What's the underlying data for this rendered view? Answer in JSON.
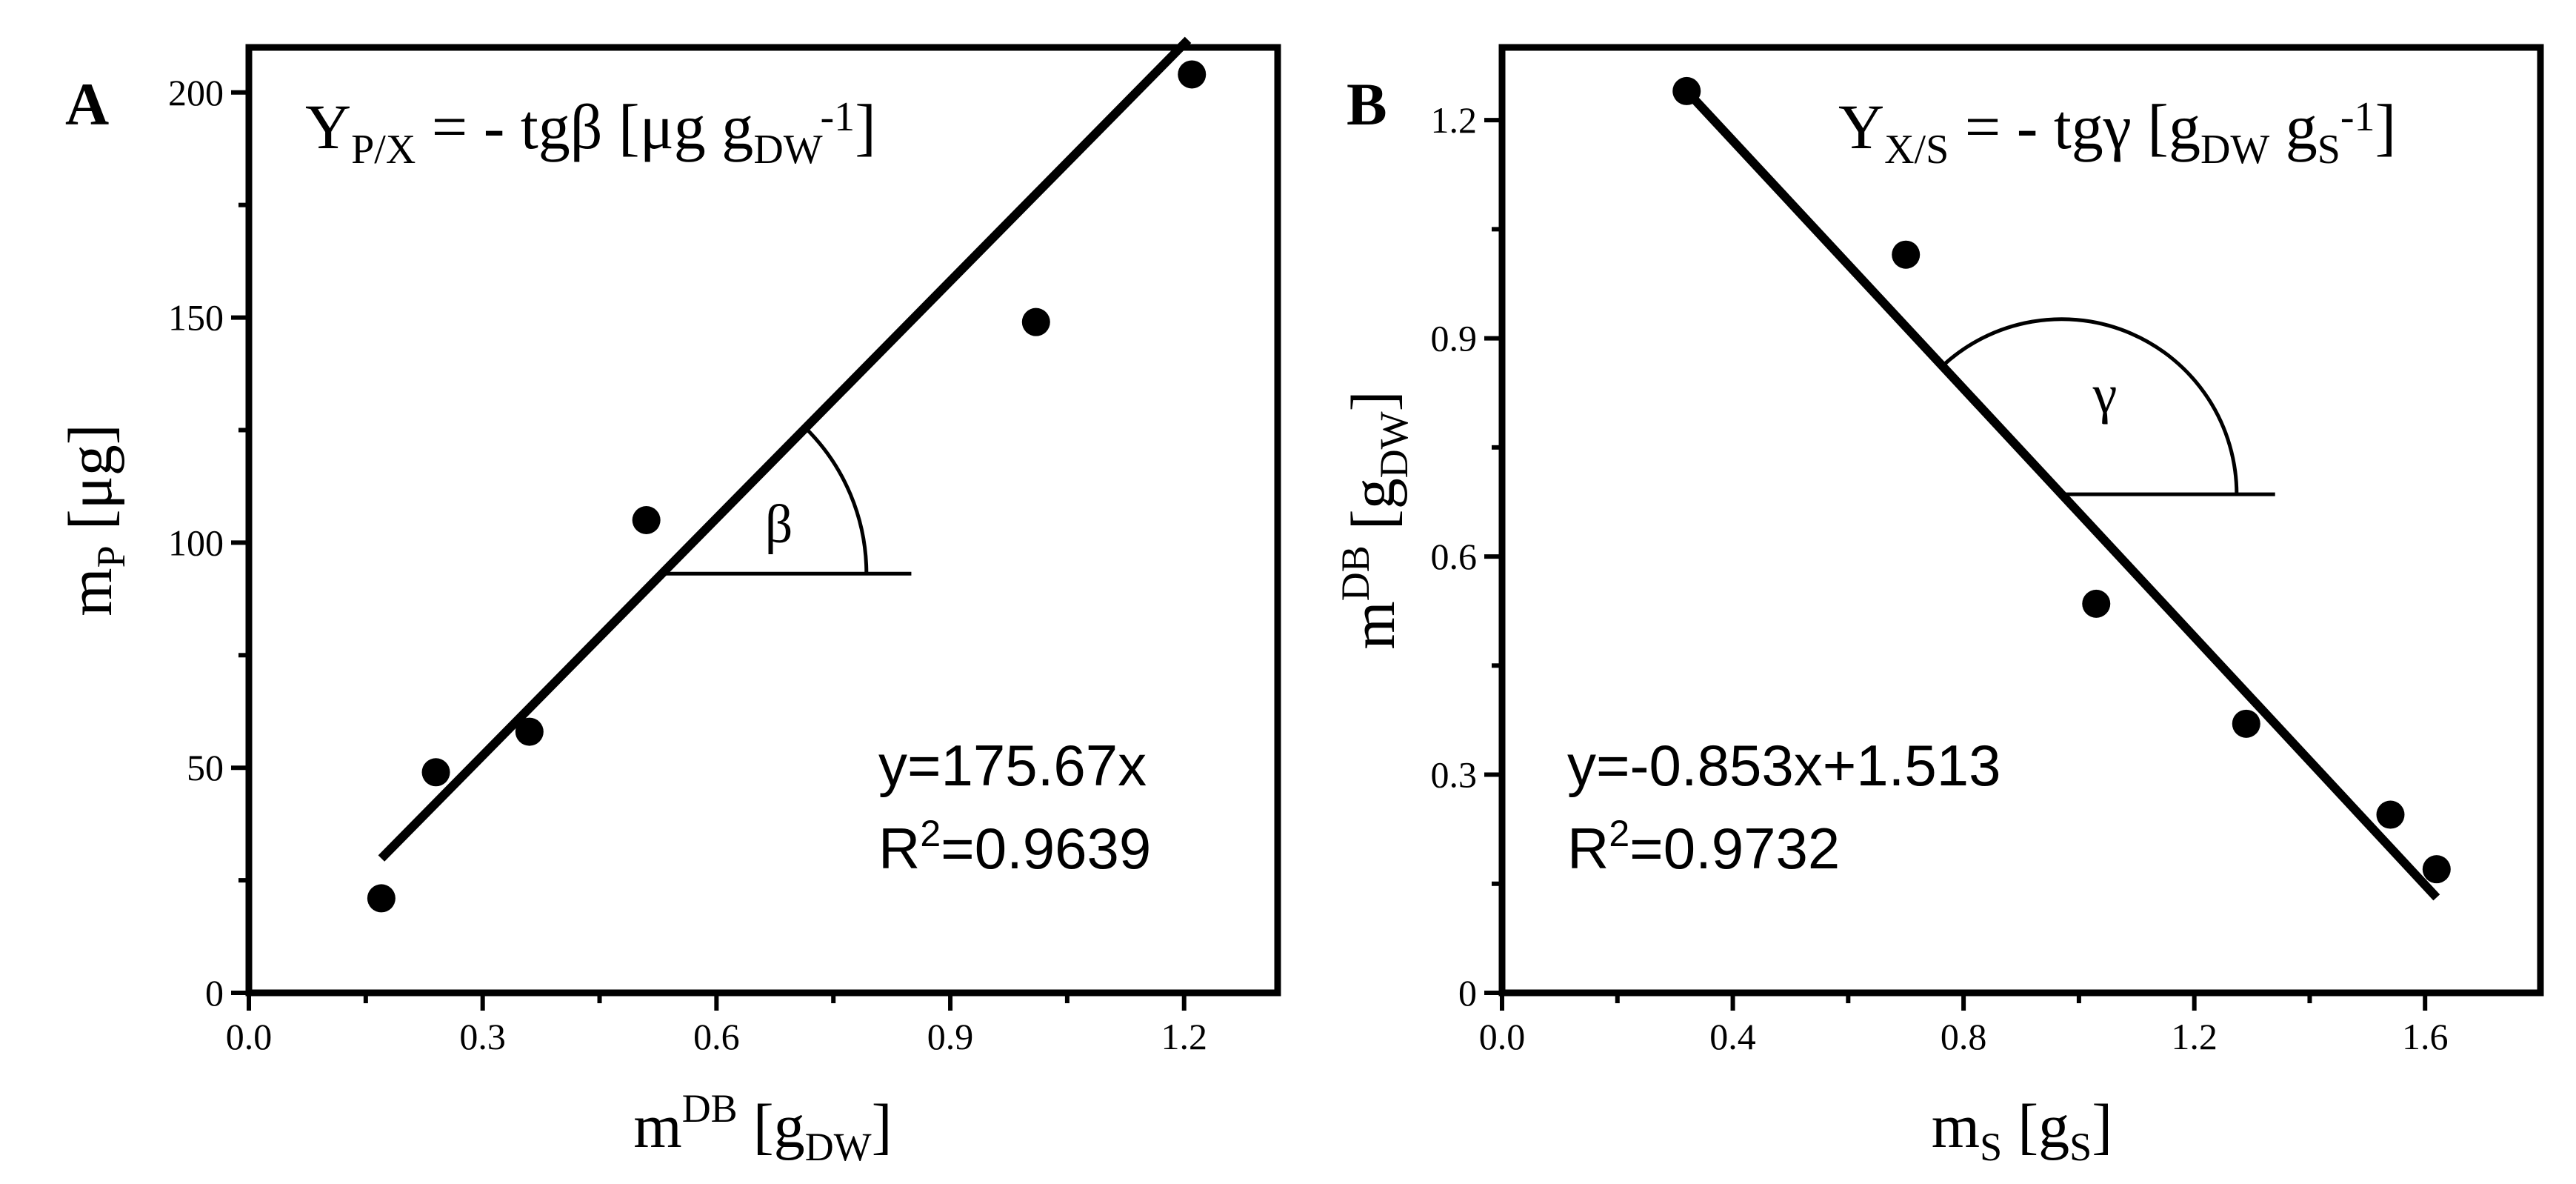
{
  "chart_data": [
    {
      "type": "scatter",
      "panel": "A",
      "formula": {
        "main": "Y",
        "sub": "P/X",
        "rest": " = - tgβ [μg g",
        "unit_sub": "DW",
        "unit_sup": "-1",
        "close": "]"
      },
      "xlabel": {
        "main": "m",
        "sup": "DB",
        "open": " [g",
        "sub": "DW",
        "close": "]"
      },
      "ylabel": {
        "main": "m",
        "sub": "P",
        "rest": " [μg]"
      },
      "xlim": [
        0,
        1.32
      ],
      "ylim": [
        0,
        210
      ],
      "x_ticks": [
        0.0,
        0.3,
        0.6,
        0.9,
        1.2
      ],
      "x_tick_labels": [
        "0.0",
        "0.3",
        "0.6",
        "0.9",
        "1.2"
      ],
      "x_minor_ticks": [
        0.15,
        0.45,
        0.75,
        1.05
      ],
      "y_ticks": [
        0,
        50,
        100,
        150,
        200
      ],
      "y_tick_labels": [
        "0",
        "50",
        "100",
        "150",
        "200"
      ],
      "y_minor_ticks": [
        25,
        75,
        125,
        175
      ],
      "points": {
        "x": [
          0.17,
          0.24,
          0.36,
          0.51,
          1.01,
          1.21
        ],
        "y": [
          21,
          49,
          58,
          105,
          149,
          204
        ]
      },
      "fit": {
        "slope": 175.67,
        "intercept": 0,
        "x_range": [
          0.17,
          1.205
        ]
      },
      "equation": "y=175.67x",
      "r2": {
        "main": "R",
        "sup": "2",
        "rest": "=0.9639"
      },
      "angle": {
        "label": "β",
        "vertex_x": 0.53,
        "end_x": 0.85
      }
    },
    {
      "type": "scatter",
      "panel": "B",
      "formula": {
        "main": "Y",
        "sub": "X/S",
        "rest": " = - tgγ [g",
        "unit_sub": "DW",
        "mid": " g",
        "unit_sub2": "S",
        "unit_sup": "-1",
        "close": "]"
      },
      "xlabel": {
        "main": "m",
        "sub": "S",
        "open": " [g",
        "sub2": "S",
        "close": "]"
      },
      "ylabel": {
        "main": "m",
        "sup": "DB",
        "open": " [g",
        "sub": "DW",
        "close": "]"
      },
      "xlim": [
        0,
        1.8
      ],
      "ylim": [
        0,
        1.3
      ],
      "x_ticks": [
        0.0,
        0.4,
        0.8,
        1.2,
        1.6
      ],
      "x_tick_labels": [
        "0.0",
        "0.4",
        "0.8",
        "1.2",
        "1.6"
      ],
      "x_minor_ticks": [
        0.2,
        0.6,
        1.0,
        1.4
      ],
      "y_ticks": [
        0,
        0.3,
        0.6,
        0.9,
        1.2
      ],
      "y_tick_labels": [
        "0",
        "0.3",
        "0.6",
        "0.9",
        "1.2"
      ],
      "y_minor_ticks": [
        0.15,
        0.45,
        0.75,
        1.05
      ],
      "points": {
        "x": [
          0.32,
          0.7,
          1.03,
          1.29,
          1.54,
          1.62
        ],
        "y": [
          1.24,
          1.015,
          0.535,
          0.37,
          0.245,
          0.17
        ]
      },
      "fit": {
        "slope": -0.853,
        "intercept": 1.513,
        "x_range": [
          0.33,
          1.62
        ]
      },
      "equation": "y=-0.853x+1.513",
      "r2": {
        "main": "R",
        "sup": "2",
        "rest": "=0.9732"
      },
      "angle": {
        "label": "γ",
        "vertex_x": 0.97,
        "end_x": 1.34
      }
    }
  ]
}
